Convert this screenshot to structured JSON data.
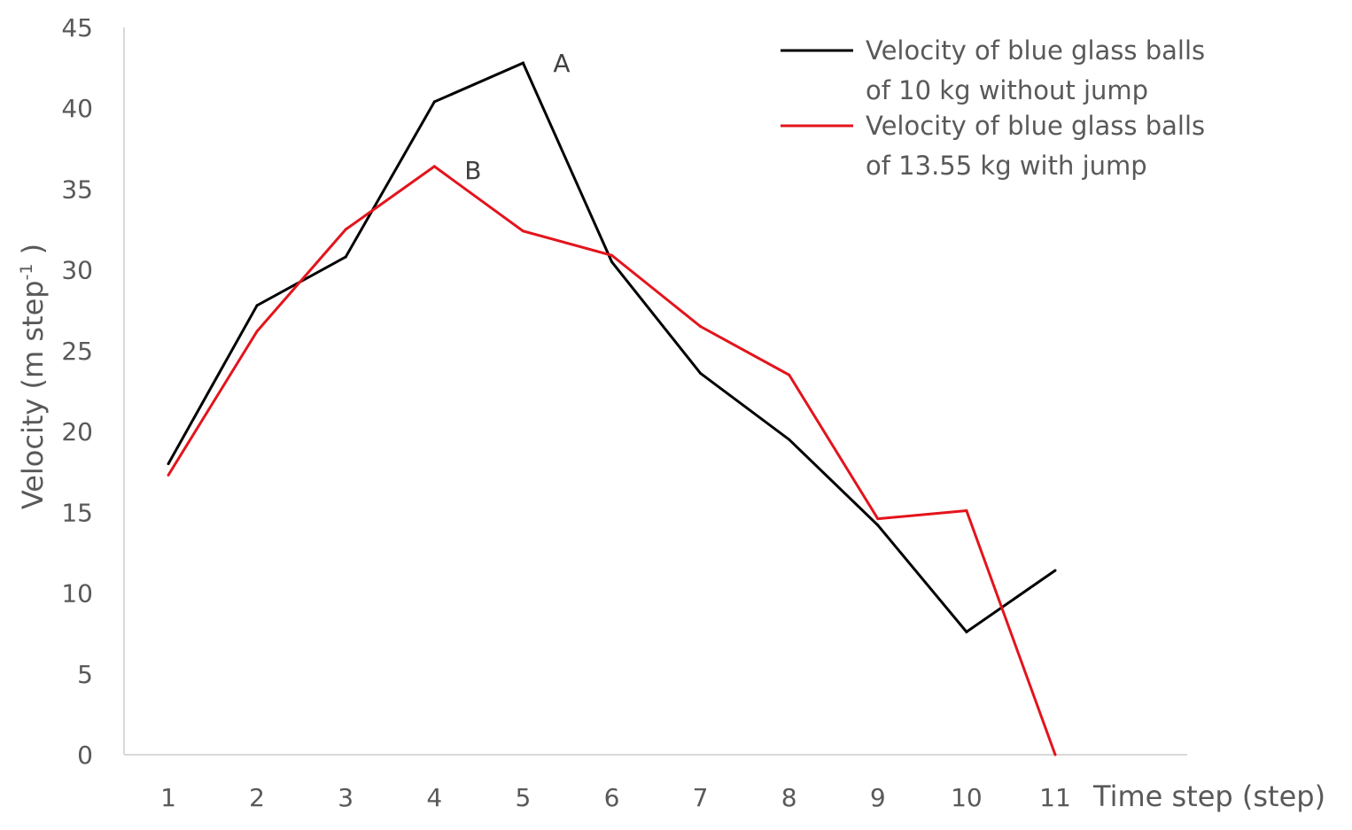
{
  "chart_data": {
    "type": "line",
    "x": [
      1,
      2,
      3,
      4,
      5,
      6,
      7,
      8,
      9,
      10,
      11
    ],
    "xlabel": "Time step  (step)",
    "ylabel": "Velocity (m step",
    "ylabel_sup": "-1",
    "ylabel_end": " )",
    "ylim": [
      0,
      45
    ],
    "yticks": [
      0,
      5,
      10,
      15,
      20,
      25,
      30,
      35,
      40,
      45
    ],
    "grid": false,
    "legend_position": "top-right",
    "series": [
      {
        "name": "Velocity of blue glass balls of 10 kg without jump",
        "legend_lines": [
          "Velocity of blue glass balls",
          "of 10 kg without jump"
        ],
        "color": "#000000",
        "values": [
          18.0,
          27.8,
          30.8,
          40.4,
          42.8,
          30.5,
          23.6,
          19.5,
          14.2,
          7.6,
          11.4
        ]
      },
      {
        "name": "Velocity of blue glass balls of 13.55 kg with jump",
        "legend_lines": [
          "Velocity of blue glass balls",
          "of 13.55 kg with jump"
        ],
        "color": "#e3141c",
        "values": [
          17.3,
          26.2,
          32.5,
          36.4,
          32.4,
          30.9,
          26.5,
          23.5,
          14.6,
          15.1,
          0.0
        ]
      }
    ],
    "annotations": [
      {
        "text": "A",
        "x": 5,
        "y": 42.8
      },
      {
        "text": "B",
        "x": 4,
        "y": 36.4
      }
    ],
    "axis_color": "#d9d9d9"
  }
}
